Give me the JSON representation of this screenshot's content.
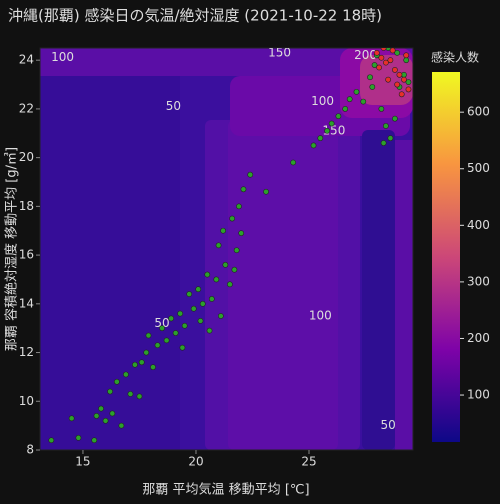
{
  "chart_data": {
    "type": "contour-scatter",
    "title": "沖縄(那覇) 感染日の気温/絶対湿度 (2021-10-22 18時)",
    "x_label": "那覇 平均気温 移動平均 [℃]",
    "y_label": "那覇 容積絶対湿度 移動平均 [g/㎥]",
    "xlim": [
      13.1,
      29.6
    ],
    "ylim": [
      8,
      24.5
    ],
    "xticks": [
      15,
      20,
      25
    ],
    "yticks": [
      8,
      10,
      12,
      14,
      16,
      18,
      20,
      22,
      24
    ],
    "colorbar": {
      "title": "感染人数",
      "lim": [
        17,
        671
      ],
      "ticks": [
        100,
        200,
        300,
        400,
        500,
        600
      ],
      "colors": [
        "#0d0887",
        "#7e03a8",
        "#cc4778",
        "#f89540",
        "#f0f921"
      ]
    },
    "contour_labels": [
      {
        "x": 14.1,
        "y": 24.1,
        "level": 100
      },
      {
        "x": 23.7,
        "y": 24.3,
        "level": 150
      },
      {
        "x": 27.5,
        "y": 24.2,
        "level": 200
      },
      {
        "x": 19.0,
        "y": 22.1,
        "level": 50
      },
      {
        "x": 25.6,
        "y": 22.3,
        "level": 100
      },
      {
        "x": 26.1,
        "y": 21.1,
        "level": 150
      },
      {
        "x": 18.5,
        "y": 13.2,
        "level": 50
      },
      {
        "x": 25.5,
        "y": 13.5,
        "level": 100
      },
      {
        "x": 28.5,
        "y": 9.0,
        "level": 50
      }
    ],
    "series": [
      {
        "color": "#2ca02c",
        "x": [
          13.6,
          14.5,
          14.8,
          15.5,
          15.6,
          15.8,
          16.0,
          16.2,
          16.5,
          16.3,
          16.7,
          16.9,
          17.1,
          17.3,
          17.5,
          17.6,
          17.8,
          17.9,
          18.1,
          18.3,
          18.5,
          18.7,
          18.9,
          19.1,
          19.3,
          19.5,
          19.7,
          19.9,
          20.1,
          20.3,
          20.5,
          20.2,
          20.7,
          20.9,
          21.1,
          21.3,
          21.5,
          21.7,
          20.6,
          19.4,
          21.0,
          21.2,
          21.6,
          21.9,
          22.1,
          21.8,
          22.0,
          22.4,
          23.1,
          24.3,
          25.2,
          25.5,
          25.8,
          26.0,
          26.3,
          26.6,
          26.8,
          27.1,
          27.4,
          27.7,
          27.9,
          28.2,
          28.4,
          28.6,
          28.8,
          29.0,
          29.2,
          28.0,
          28.5,
          29.3,
          29.4,
          28.3,
          27.8,
          28.9
        ],
        "y": [
          8.4,
          9.3,
          8.5,
          8.4,
          9.4,
          9.7,
          9.2,
          10.4,
          10.8,
          9.5,
          9.0,
          11.1,
          10.3,
          11.5,
          10.2,
          11.6,
          12.0,
          12.7,
          11.4,
          12.3,
          13.0,
          12.5,
          13.4,
          12.8,
          13.6,
          13.1,
          14.4,
          13.8,
          14.6,
          14.0,
          15.2,
          13.3,
          14.2,
          15.0,
          13.5,
          15.6,
          14.8,
          15.4,
          12.9,
          12.2,
          16.4,
          17.0,
          17.5,
          18.0,
          18.7,
          16.2,
          16.9,
          19.3,
          18.6,
          19.8,
          20.5,
          20.8,
          21.1,
          21.4,
          21.7,
          22.0,
          22.4,
          22.7,
          22.3,
          23.3,
          23.8,
          22.0,
          21.3,
          20.8,
          21.6,
          22.9,
          23.4,
          24.2,
          24.5,
          24.0,
          23.1,
          20.6,
          22.9,
          24.3
        ]
      },
      {
        "color": "#e8302a",
        "x": [
          28.0,
          28.2,
          28.4,
          28.6,
          28.8,
          29.0,
          29.2,
          29.4,
          28.5,
          28.7,
          28.3,
          29.1,
          29.3,
          28.9,
          28.1
        ],
        "y": [
          24.3,
          24.1,
          23.9,
          24.0,
          23.6,
          23.4,
          23.2,
          22.8,
          23.2,
          24.4,
          24.5,
          22.6,
          24.2,
          23.0,
          23.7
        ]
      }
    ]
  }
}
